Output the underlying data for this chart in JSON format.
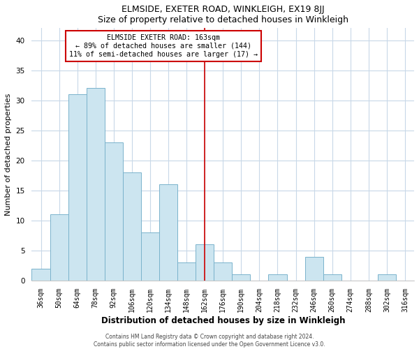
{
  "title": "ELMSIDE, EXETER ROAD, WINKLEIGH, EX19 8JJ",
  "subtitle": "Size of property relative to detached houses in Winkleigh",
  "xlabel": "Distribution of detached houses by size in Winkleigh",
  "ylabel": "Number of detached properties",
  "bin_labels": [
    "36sqm",
    "50sqm",
    "64sqm",
    "78sqm",
    "92sqm",
    "106sqm",
    "120sqm",
    "134sqm",
    "148sqm",
    "162sqm",
    "176sqm",
    "190sqm",
    "204sqm",
    "218sqm",
    "232sqm",
    "246sqm",
    "260sqm",
    "274sqm",
    "288sqm",
    "302sqm",
    "316sqm"
  ],
  "bar_heights": [
    2,
    11,
    31,
    32,
    23,
    18,
    8,
    16,
    3,
    6,
    3,
    1,
    0,
    1,
    0,
    4,
    1,
    0,
    0,
    1,
    0
  ],
  "bar_color": "#cce5f0",
  "bar_edge_color": "#7ab3cc",
  "vline_index": 9,
  "vline_color": "#cc0000",
  "annotation_title": "ELMSIDE EXETER ROAD: 163sqm",
  "annotation_line1": "← 89% of detached houses are smaller (144)",
  "annotation_line2": "11% of semi-detached houses are larger (17) →",
  "ylim": [
    0,
    42
  ],
  "yticks": [
    0,
    5,
    10,
    15,
    20,
    25,
    30,
    35,
    40
  ],
  "footer1": "Contains HM Land Registry data © Crown copyright and database right 2024.",
  "footer2": "Contains public sector information licensed under the Open Government Licence v3.0.",
  "background_color": "#ffffff",
  "grid_color": "#c8d8e8"
}
